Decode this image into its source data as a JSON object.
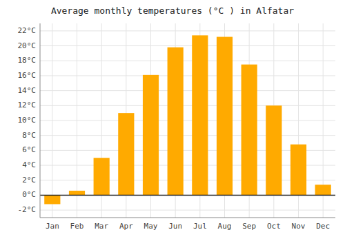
{
  "chart_data": {
    "type": "bar",
    "title": "Average monthly temperatures (°C ) in Alfatar",
    "categories": [
      "Jan",
      "Feb",
      "Mar",
      "Apr",
      "May",
      "Jun",
      "Jul",
      "Aug",
      "Sep",
      "Oct",
      "Nov",
      "Dec"
    ],
    "values": [
      -1.2,
      0.6,
      5.0,
      11.0,
      16.1,
      19.8,
      21.4,
      21.2,
      17.5,
      12.0,
      6.8,
      1.4
    ],
    "color": "#FFAA00",
    "ylim": [
      -3,
      23
    ],
    "yticks": [
      {
        "value": -2,
        "label": "-2°C"
      },
      {
        "value": 0,
        "label": "0°C"
      },
      {
        "value": 2,
        "label": "2°C"
      },
      {
        "value": 4,
        "label": "4°C"
      },
      {
        "value": 6,
        "label": "6°C"
      },
      {
        "value": 8,
        "label": "8°C"
      },
      {
        "value": 10,
        "label": "10°C"
      },
      {
        "value": 12,
        "label": "12°C"
      },
      {
        "value": 14,
        "label": "14°C"
      },
      {
        "value": 16,
        "label": "16°C"
      },
      {
        "value": 18,
        "label": "18°C"
      },
      {
        "value": 20,
        "label": "20°C"
      },
      {
        "value": 22,
        "label": "22°C"
      }
    ],
    "grid": true
  }
}
